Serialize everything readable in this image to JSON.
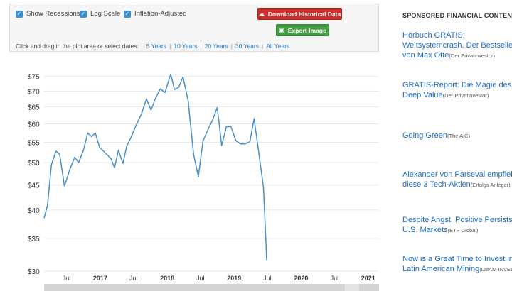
{
  "controls": {
    "show_recessions": "Show Recessions",
    "log_scale": "Log Scale",
    "inflation_adjusted": "Inflation-Adjusted",
    "download_button": "Download Historical Data",
    "export_button": "Export Image",
    "date_prompt": "Click and drag in the plot area or select dates:",
    "ranges": [
      "5 Years",
      "10 Years",
      "20 Years",
      "30 Years",
      "All Years"
    ]
  },
  "chart_data": {
    "type": "line",
    "log_scale": true,
    "grid": true,
    "y_ticks": [
      "$30",
      "$35",
      "$40",
      "$45",
      "$50",
      "$55",
      "$60",
      "$65",
      "$70",
      "$75"
    ],
    "y_tick_values": [
      30,
      35,
      40,
      45,
      50,
      55,
      60,
      65,
      70,
      75
    ],
    "ylim": [
      30,
      78
    ],
    "xlim": [
      "2016-03-01",
      "2021-03-01"
    ],
    "x_ticks": [
      {
        "label": "Jul",
        "date": "2016-07-01",
        "bold": false
      },
      {
        "label": "2017",
        "date": "2017-01-01",
        "bold": true
      },
      {
        "label": "Jul",
        "date": "2017-07-01",
        "bold": false
      },
      {
        "label": "2018",
        "date": "2018-01-01",
        "bold": true
      },
      {
        "label": "Jul",
        "date": "2018-07-01",
        "bold": false
      },
      {
        "label": "2019",
        "date": "2019-01-01",
        "bold": true
      },
      {
        "label": "Jul",
        "date": "2019-07-01",
        "bold": false
      },
      {
        "label": "2020",
        "date": "2020-01-01",
        "bold": true
      },
      {
        "label": "Jul",
        "date": "2020-07-01",
        "bold": false
      },
      {
        "label": "2021",
        "date": "2021-01-01",
        "bold": true
      }
    ],
    "points": [
      [
        "2016-03-01",
        38.5
      ],
      [
        "2016-03-20",
        41
      ],
      [
        "2016-04-10",
        49.5
      ],
      [
        "2016-05-05",
        52.8
      ],
      [
        "2016-05-25",
        52.0
      ],
      [
        "2016-06-20",
        44.8
      ],
      [
        "2016-07-20",
        48.5
      ],
      [
        "2016-08-15",
        51.3
      ],
      [
        "2016-09-05",
        50.0
      ],
      [
        "2016-10-01",
        52.9
      ],
      [
        "2016-10-25",
        57.5
      ],
      [
        "2016-11-15",
        56.5
      ],
      [
        "2016-12-05",
        57.5
      ],
      [
        "2016-12-28",
        53.8
      ],
      [
        "2017-01-25",
        52.5
      ],
      [
        "2017-02-28",
        51.0
      ],
      [
        "2017-03-20",
        48.8
      ],
      [
        "2017-04-10",
        53.0
      ],
      [
        "2017-05-05",
        49.8
      ],
      [
        "2017-05-25",
        54.0
      ],
      [
        "2017-06-15",
        56.0
      ],
      [
        "2017-07-15",
        59.5
      ],
      [
        "2017-08-15",
        63.0
      ],
      [
        "2017-09-10",
        67.5
      ],
      [
        "2017-10-05",
        64.0
      ],
      [
        "2017-10-28",
        67.5
      ],
      [
        "2017-11-25",
        70.8
      ],
      [
        "2017-12-20",
        69.5
      ],
      [
        "2018-01-20",
        75.8
      ],
      [
        "2018-02-10",
        70.5
      ],
      [
        "2018-03-05",
        71.3
      ],
      [
        "2018-03-28",
        74.8
      ],
      [
        "2018-04-25",
        67.0
      ],
      [
        "2018-05-25",
        52.0
      ],
      [
        "2018-06-20",
        46.8
      ],
      [
        "2018-07-15",
        55.3
      ],
      [
        "2018-08-15",
        58.8
      ],
      [
        "2018-09-05",
        61.0
      ],
      [
        "2018-10-01",
        64.8
      ],
      [
        "2018-10-25",
        54.2
      ],
      [
        "2018-11-20",
        59.2
      ],
      [
        "2018-12-15",
        59.2
      ],
      [
        "2019-01-10",
        55.5
      ],
      [
        "2019-02-05",
        54.6
      ],
      [
        "2019-03-01",
        54.6
      ],
      [
        "2019-03-28",
        55.2
      ],
      [
        "2019-04-20",
        61.5
      ],
      [
        "2019-05-15",
        52.5
      ],
      [
        "2019-06-10",
        44.5
      ],
      [
        "2019-06-28",
        31.5
      ]
    ]
  },
  "sidebar": {
    "title": "SPONSORED FINANCIAL CONTENT",
    "ads": [
      {
        "lines": [
          "Hörbuch GRATIS:",
          "Weltsystemcrash. Der Bestseller",
          "von Max Otte"
        ],
        "source": "(Der Privatinvestor)"
      },
      {
        "lines": [
          "GRATIS-Report: Die Magie des",
          "Deep Value"
        ],
        "source": "(Der Privatinvestor)"
      },
      {
        "lines": [
          "Going Green"
        ],
        "source": "(The AIC)"
      },
      {
        "lines": [
          "Alexander von Parseval empfiehlt",
          "diese 3 Tech-Aktien"
        ],
        "source": "(Erfolgs Anleger)"
      },
      {
        "lines": [
          "Despite Angst, Positive Persists in",
          "U.S. Markets"
        ],
        "source": "(ETF Global)"
      },
      {
        "lines": [
          "Now is a Great Time to Invest in",
          "Latin American Mining"
        ],
        "source": "(LatAM INVESTOR)"
      }
    ]
  }
}
